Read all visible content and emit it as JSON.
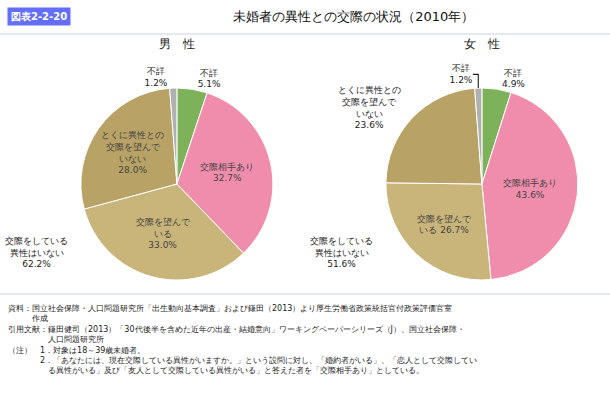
{
  "tag": "図表2-2-20",
  "title": "未婚者の異性との交際の状況（2010年）",
  "notes": [
    "資料：国立社会保障・人口問題研究所「出生動向基本調査」および鎌田（2013）より厚生労働省政策統括官付政策評価官室",
    "　　　作成",
    "引用文献：鎌田健司（2013）「30代後半を含めた近年の出産・結婚意向」ワーキングペーパーシリーズ（J）、国立社会保障・",
    "　　　　　人口問題研究所",
    "（注）　1．対象は18～39歳未婚者。",
    "　　　　2．「あなたには、現在交際している異性がいますか。」という設問に対し、「婚約者がいる」、「恋人として交際してい",
    "　　　　　る異性がいる」及び「友人として交際している異性がいる」と答えた者を「交際相手あり」としている。"
  ],
  "chart_data": [
    {
      "type": "pie",
      "title": "男　性",
      "values": [
        5.1,
        32.7,
        33.0,
        28.0,
        1.2
      ],
      "value_labels": [
        "不詳\n5.1%",
        "交際相手あり\n32.7%",
        "交際を望んで\nいる\n33.0%",
        "とくに異性との\n交際を望んで\nいない\n28.0%",
        "不詳\n1.2%"
      ],
      "data_labels": true,
      "colors": [
        "#7DB15A",
        "#F08DAD",
        "#C9B47A",
        "#B8A265",
        "#B0B0B0"
      ],
      "annotations": [
        "交際をしている\n異性はいない\n62.2%"
      ]
    },
    {
      "type": "pie",
      "title": "女　性",
      "values": [
        4.9,
        43.6,
        26.7,
        23.6,
        1.2
      ],
      "value_labels": [
        "不詳\n4.9%",
        "交際相手あり\n43.6%",
        "交際を望んで\nいる 26.7%",
        "とくに異性との\n交際を望んで\nいない\n23.6%",
        "不詳\n1.2%"
      ],
      "data_labels": true,
      "colors": [
        "#7DB15A",
        "#F08DAD",
        "#C9B47A",
        "#B8A265",
        "#B0B0B0"
      ],
      "annotations": [
        "交際をしている\n異性はいない\n51.6%"
      ]
    }
  ]
}
